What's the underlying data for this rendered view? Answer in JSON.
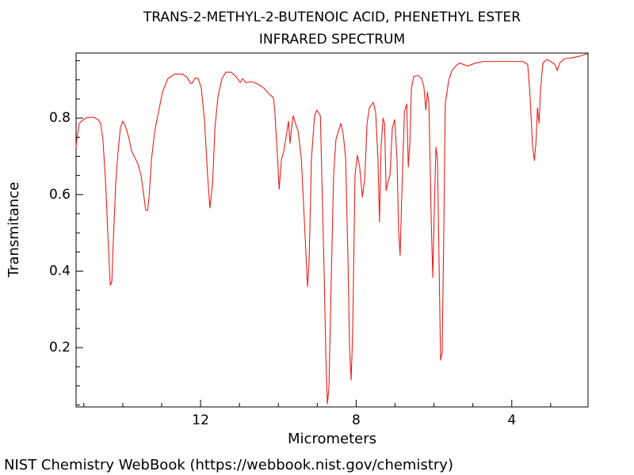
{
  "chart_data": {
    "type": "line",
    "title": "TRANS-2-METHYL-2-BUTENOIC ACID, PHENETHYL ESTER",
    "subtitle": "INFRARED SPECTRUM",
    "x_label": "Micrometers",
    "y_label": "Transmitance",
    "source": "NIST Chemistry WebBook (https://webbook.nist.gov/chemistry)",
    "xlim": [
      15.2,
      2.04
    ],
    "ylim": [
      0.045,
      0.97
    ],
    "xticks": [
      12,
      8,
      4
    ],
    "xticks_minor": [
      15,
      14,
      13,
      11,
      10,
      9,
      7,
      6,
      5,
      3
    ],
    "yticks": [
      0.2,
      0.4,
      0.6,
      0.8
    ],
    "yticks_minor": [
      0.05,
      0.1,
      0.15,
      0.25,
      0.3,
      0.35,
      0.45,
      0.5,
      0.55,
      0.65,
      0.7,
      0.75,
      0.85,
      0.9,
      0.95
    ],
    "series": [
      {
        "color": "#e8201c",
        "x": [
          15.2,
          15.18,
          15.12,
          15.01,
          14.91,
          14.75,
          14.63,
          14.57,
          14.51,
          14.44,
          14.38,
          14.32,
          14.28,
          14.24,
          14.18,
          14.12,
          14.06,
          14.0,
          13.94,
          13.85,
          13.77,
          13.69,
          13.61,
          13.53,
          13.45,
          13.41,
          13.36,
          13.32,
          13.26,
          13.18,
          13.08,
          12.98,
          12.84,
          12.67,
          12.47,
          12.35,
          12.26,
          12.22,
          12.14,
          12.06,
          11.98,
          11.9,
          11.82,
          11.76,
          11.69,
          11.63,
          11.55,
          11.45,
          11.35,
          11.21,
          11.08,
          10.98,
          10.92,
          10.84,
          10.68,
          10.53,
          10.37,
          10.23,
          10.13,
          10.09,
          10.02,
          9.98,
          9.92,
          9.86,
          9.78,
          9.74,
          9.7,
          9.66,
          9.62,
          9.56,
          9.49,
          9.41,
          9.33,
          9.25,
          9.21,
          9.15,
          9.07,
          9.01,
          8.92,
          8.88,
          8.82,
          8.78,
          8.74,
          8.7,
          8.64,
          8.58,
          8.52,
          8.46,
          8.39,
          8.33,
          8.27,
          8.21,
          8.17,
          8.13,
          8.09,
          8.03,
          7.97,
          7.91,
          7.84,
          7.78,
          7.72,
          7.66,
          7.56,
          7.5,
          7.44,
          7.4,
          7.36,
          7.31,
          7.27,
          7.23,
          7.19,
          7.13,
          7.07,
          7.01,
          6.95,
          6.91,
          6.87,
          6.83,
          6.76,
          6.7,
          6.66,
          6.62,
          6.58,
          6.52,
          6.4,
          6.32,
          6.26,
          6.21,
          6.17,
          6.13,
          6.07,
          6.03,
          5.99,
          5.95,
          5.91,
          5.87,
          5.83,
          5.79,
          5.75,
          5.71,
          5.62,
          5.54,
          5.44,
          5.34,
          5.24,
          5.14,
          4.93,
          4.73,
          4.42,
          4.12,
          3.71,
          3.59,
          3.53,
          3.47,
          3.42,
          3.38,
          3.34,
          3.3,
          3.26,
          3.2,
          3.1,
          3.0,
          2.89,
          2.83,
          2.77,
          2.65,
          2.49,
          2.28,
          2.04
        ],
        "values": [
          0.724,
          0.744,
          0.786,
          0.796,
          0.802,
          0.802,
          0.796,
          0.786,
          0.744,
          0.631,
          0.487,
          0.363,
          0.373,
          0.487,
          0.631,
          0.713,
          0.775,
          0.792,
          0.781,
          0.751,
          0.713,
          0.697,
          0.68,
          0.651,
          0.59,
          0.559,
          0.559,
          0.6,
          0.693,
          0.765,
          0.816,
          0.868,
          0.903,
          0.915,
          0.915,
          0.907,
          0.891,
          0.891,
          0.905,
          0.903,
          0.878,
          0.796,
          0.651,
          0.565,
          0.631,
          0.775,
          0.858,
          0.903,
          0.92,
          0.92,
          0.907,
          0.893,
          0.903,
          0.893,
          0.895,
          0.889,
          0.878,
          0.862,
          0.854,
          0.816,
          0.693,
          0.614,
          0.693,
          0.713,
          0.765,
          0.792,
          0.734,
          0.775,
          0.806,
          0.786,
          0.765,
          0.693,
          0.528,
          0.359,
          0.425,
          0.693,
          0.806,
          0.821,
          0.806,
          0.631,
          0.383,
          0.177,
          0.053,
          0.095,
          0.383,
          0.651,
          0.744,
          0.765,
          0.786,
          0.755,
          0.693,
          0.425,
          0.198,
          0.115,
          0.239,
          0.651,
          0.703,
          0.672,
          0.594,
          0.641,
          0.786,
          0.827,
          0.841,
          0.816,
          0.693,
          0.528,
          0.724,
          0.8,
          0.786,
          0.61,
          0.631,
          0.651,
          0.775,
          0.796,
          0.693,
          0.507,
          0.441,
          0.59,
          0.816,
          0.837,
          0.672,
          0.734,
          0.878,
          0.909,
          0.911,
          0.903,
          0.882,
          0.821,
          0.868,
          0.837,
          0.528,
          0.383,
          0.569,
          0.724,
          0.693,
          0.425,
          0.167,
          0.188,
          0.487,
          0.837,
          0.899,
          0.924,
          0.936,
          0.944,
          0.94,
          0.936,
          0.944,
          0.948,
          0.948,
          0.948,
          0.948,
          0.94,
          0.858,
          0.734,
          0.689,
          0.734,
          0.827,
          0.786,
          0.878,
          0.944,
          0.953,
          0.948,
          0.94,
          0.924,
          0.944,
          0.955,
          0.957,
          0.961,
          0.969
        ]
      }
    ]
  }
}
